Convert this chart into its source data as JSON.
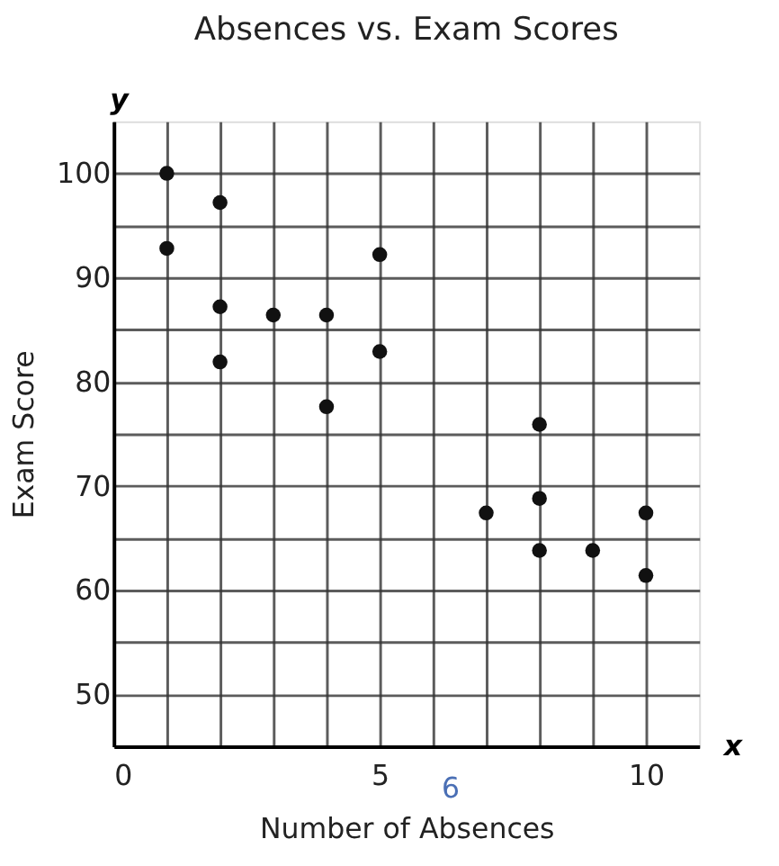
{
  "chart_data": {
    "type": "scatter",
    "title": "Absences vs. Exam Scores",
    "xlabel": "Number of Absences",
    "ylabel": "Exam Score",
    "x": [
      1,
      1,
      2,
      2,
      2,
      3,
      4,
      4,
      5,
      5,
      7,
      8,
      8,
      8,
      9,
      10,
      10
    ],
    "series": [
      {
        "color": "#111111",
        "values": [
          100,
          92.8,
          97.2,
          87.2,
          81.9,
          86.4,
          86.4,
          77.6,
          92.2,
          82.9,
          67.4,
          75.9,
          68.8,
          63.8,
          63.8,
          67.4,
          61.4
        ]
      }
    ],
    "xlim": [
      0,
      11
    ],
    "ylim": [
      45,
      105
    ],
    "xticks": [
      0,
      {
        "value": 1,
        "label": null
      },
      {
        "value": 2,
        "label": null
      },
      {
        "value": 3,
        "label": null
      },
      {
        "value": 4,
        "label": null
      },
      5,
      {
        "value": 6,
        "label": null
      },
      {
        "value": 7,
        "label": null
      },
      {
        "value": 8,
        "label": null
      },
      {
        "value": 9,
        "label": null
      },
      10
    ],
    "yticks": [
      50,
      {
        "value": 55,
        "label": null
      },
      60,
      {
        "value": 65,
        "label": null
      },
      70,
      {
        "value": 75,
        "label": null
      },
      80,
      {
        "value": 85,
        "label": null
      },
      90,
      {
        "value": 95,
        "label": null
      },
      100
    ],
    "grid": true,
    "marker": "circle",
    "annotations": [
      "y",
      "x",
      "6"
    ]
  }
}
